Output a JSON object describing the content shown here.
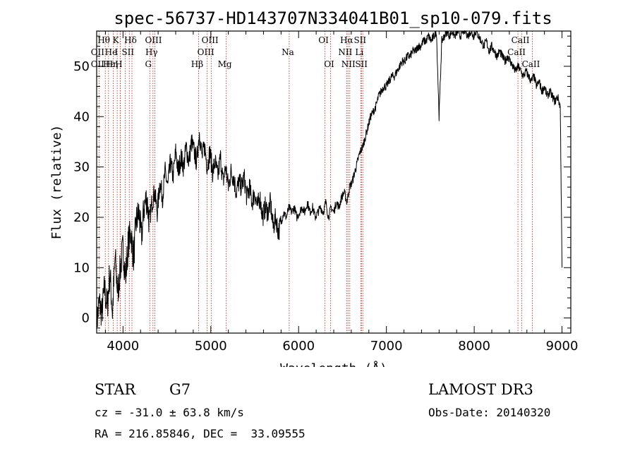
{
  "chart_data": {
    "type": "line",
    "title": "spec-56737-HD143707N334041B01_sp10-079.fits",
    "xlabel": "Wavelength (Å)",
    "ylabel": "Flux (relative)",
    "xlim": [
      3700,
      9100
    ],
    "ylim": [
      -3,
      57
    ],
    "xticks": [
      4000,
      5000,
      6000,
      7000,
      8000,
      9000
    ],
    "yticks": [
      0,
      10,
      20,
      30,
      40,
      50
    ],
    "series": [
      {
        "name": "flux",
        "x": [
          3700,
          3730,
          3760,
          3790,
          3820,
          3850,
          3880,
          3910,
          3940,
          3970,
          4000,
          4030,
          4060,
          4090,
          4120,
          4150,
          4180,
          4210,
          4240,
          4270,
          4300,
          4330,
          4360,
          4390,
          4420,
          4450,
          4480,
          4510,
          4540,
          4570,
          4600,
          4630,
          4660,
          4690,
          4720,
          4750,
          4780,
          4810,
          4840,
          4870,
          4900,
          4930,
          4960,
          4990,
          5020,
          5050,
          5080,
          5110,
          5140,
          5170,
          5200,
          5230,
          5260,
          5290,
          5320,
          5350,
          5380,
          5410,
          5440,
          5470,
          5500,
          5530,
          5560,
          5590,
          5620,
          5650,
          5680,
          5710,
          5740,
          5770,
          5800,
          5830,
          5860,
          5890,
          5920,
          5950,
          5980,
          6010,
          6040,
          6070,
          6100,
          6130,
          6160,
          6190,
          6220,
          6250,
          6280,
          6310,
          6340,
          6370,
          6400,
          6430,
          6460,
          6490,
          6520,
          6550,
          6580,
          6610,
          6640,
          6670,
          6700,
          6730,
          6760,
          6790,
          6820,
          6850,
          6880,
          6910,
          6940,
          6970,
          7000,
          7030,
          7060,
          7090,
          7120,
          7150,
          7180,
          7210,
          7240,
          7270,
          7300,
          7330,
          7360,
          7390,
          7420,
          7450,
          7480,
          7510,
          7540,
          7570,
          7600,
          7630,
          7660,
          7690,
          7720,
          7750,
          7780,
          7810,
          7840,
          7870,
          7900,
          7930,
          7960,
          7990,
          8020,
          8050,
          8080,
          8110,
          8140,
          8170,
          8200,
          8230,
          8260,
          8290,
          8320,
          8350,
          8380,
          8410,
          8440,
          8470,
          8500,
          8530,
          8560,
          8590,
          8620,
          8650,
          8680,
          8710,
          8740,
          8770,
          8800,
          8830,
          8860,
          8890,
          8920,
          8950,
          8980,
          9000
        ],
        "values": [
          -1,
          3,
          1,
          6,
          2,
          9,
          1,
          12,
          5,
          10,
          14,
          8,
          15,
          17,
          12,
          19,
          21,
          16,
          22,
          24,
          19,
          23,
          25,
          21,
          27,
          24,
          29,
          26,
          31,
          28,
          33,
          29,
          32,
          30,
          34,
          31,
          35,
          33,
          31,
          37,
          32,
          34,
          30,
          33,
          29,
          31,
          28,
          32,
          27,
          30,
          26,
          29,
          28,
          25,
          27,
          26,
          28,
          24,
          26,
          23,
          25,
          22,
          24,
          20,
          22,
          21,
          23,
          18,
          20,
          17,
          19,
          21,
          20,
          22,
          21,
          22,
          20,
          21,
          22,
          21,
          23,
          21,
          22,
          20,
          21,
          22,
          21,
          23,
          20,
          22,
          21,
          23,
          22,
          24,
          25,
          23,
          26,
          27,
          29,
          31,
          33,
          34,
          36,
          38,
          40,
          41,
          42,
          44,
          45,
          46,
          46,
          47,
          48,
          48,
          49,
          50,
          51,
          51,
          52,
          52,
          53,
          53,
          54,
          54,
          55,
          55,
          56,
          55,
          56,
          57,
          40,
          55,
          56,
          57,
          56,
          57,
          56,
          57,
          56,
          57,
          57,
          56,
          57,
          56,
          57,
          56,
          55,
          54,
          55,
          53,
          54,
          53,
          52,
          53,
          52,
          51,
          52,
          51,
          50,
          49,
          50,
          49,
          48,
          49,
          48,
          47,
          48,
          46,
          47,
          45,
          46,
          44,
          45,
          44,
          43,
          44,
          42,
          10
        ],
        "color": "#000000"
      }
    ],
    "line_markers": [
      {
        "name": "OII",
        "wavelength": 3727
      },
      {
        "name": "Hθ",
        "wavelength": 3798
      },
      {
        "name": "H9",
        "wavelength": 3835
      },
      {
        "name": "Hη",
        "wavelength": 3889
      },
      {
        "name": "K",
        "wavelength": 3934
      },
      {
        "name": "H",
        "wavelength": 3968
      },
      {
        "name": "Hε",
        "wavelength": 3970
      },
      {
        "name": "HeI",
        "wavelength": 4026
      },
      {
        "name": "SII",
        "wavelength": 4072
      },
      {
        "name": "Hδ",
        "wavelength": 4102
      },
      {
        "name": "G",
        "wavelength": 4305
      },
      {
        "name": "Hγ",
        "wavelength": 4341
      },
      {
        "name": "OIII",
        "wavelength": 4363
      },
      {
        "name": "Hβ",
        "wavelength": 4861
      },
      {
        "name": "OIII",
        "wavelength": 4959
      },
      {
        "name": "OIII",
        "wavelength": 5007
      },
      {
        "name": "Mg",
        "wavelength": 5175
      },
      {
        "name": "Na",
        "wavelength": 5893
      },
      {
        "name": "OI",
        "wavelength": 6300
      },
      {
        "name": "OI",
        "wavelength": 6364
      },
      {
        "name": "NII",
        "wavelength": 6548
      },
      {
        "name": "Hα",
        "wavelength": 6563
      },
      {
        "name": "NII",
        "wavelength": 6583
      },
      {
        "name": "Li",
        "wavelength": 6708
      },
      {
        "name": "SII",
        "wavelength": 6716
      },
      {
        "name": "SII",
        "wavelength": 6731
      },
      {
        "name": "CaII",
        "wavelength": 8498
      },
      {
        "name": "CaII",
        "wavelength": 8542
      },
      {
        "name": "CaII",
        "wavelength": 8662
      }
    ],
    "line_labels": [
      {
        "text": "Hθ",
        "wavelength": 3798,
        "row": 0
      },
      {
        "text": "K",
        "wavelength": 3934,
        "row": 0
      },
      {
        "text": "Hδ",
        "wavelength": 4102,
        "row": 0
      },
      {
        "text": "OIII",
        "wavelength": 4363,
        "row": 0
      },
      {
        "text": "OIII",
        "wavelength": 5007,
        "row": 0
      },
      {
        "text": "OI",
        "wavelength": 6300,
        "row": 0
      },
      {
        "text": "Hα",
        "wavelength": 6563,
        "row": 0
      },
      {
        "text": "SII",
        "wavelength": 6716,
        "row": 0
      },
      {
        "text": "CaII",
        "wavelength": 8542,
        "row": 0
      },
      {
        "text": "OII",
        "wavelength": 3727,
        "row": 1
      },
      {
        "text": "He",
        "wavelength": 3880,
        "row": 1
      },
      {
        "text": "I",
        "wavelength": 3940,
        "row": 1
      },
      {
        "text": "SII",
        "wavelength": 4072,
        "row": 1
      },
      {
        "text": "Hγ",
        "wavelength": 4341,
        "row": 1
      },
      {
        "text": "OIII",
        "wavelength": 4959,
        "row": 1
      },
      {
        "text": "Na",
        "wavelength": 5893,
        "row": 1
      },
      {
        "text": "NII",
        "wavelength": 6548,
        "row": 1
      },
      {
        "text": "Li",
        "wavelength": 6708,
        "row": 1
      },
      {
        "text": "CaII",
        "wavelength": 8498,
        "row": 1
      },
      {
        "text": "OII",
        "wavelength": 3727,
        "row": 2
      },
      {
        "text": "Hε",
        "wavelength": 3855,
        "row": 2
      },
      {
        "text": "Hη",
        "wavelength": 3889,
        "row": 2
      },
      {
        "text": "H",
        "wavelength": 3968,
        "row": 2
      },
      {
        "text": "G",
        "wavelength": 4305,
        "row": 2
      },
      {
        "text": "Hβ",
        "wavelength": 4861,
        "row": 2
      },
      {
        "text": "Mg",
        "wavelength": 5175,
        "row": 2
      },
      {
        "text": "OI",
        "wavelength": 6364,
        "row": 2
      },
      {
        "text": "NII",
        "wavelength": 6583,
        "row": 2
      },
      {
        "text": "SII",
        "wavelength": 6731,
        "row": 2
      },
      {
        "text": "CaII",
        "wavelength": 8662,
        "row": 2
      }
    ]
  },
  "info": {
    "class": "STAR",
    "subclass": "G7",
    "cz": "cz = -31.0 ± 63.8 km/s",
    "radec": "RA = 216.85846, DEC =  33.09555",
    "survey": "LAMOST DR3",
    "obs_date": "Obs-Date: 20140320"
  }
}
